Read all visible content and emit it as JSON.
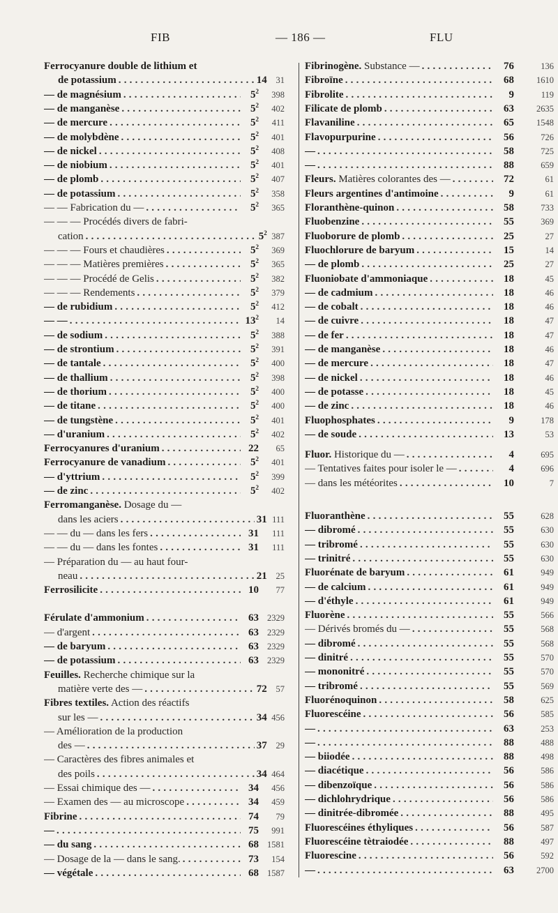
{
  "header": {
    "left": "FIB",
    "center": "— 186 —",
    "right": "FLU"
  },
  "left": {
    "entries": [
      {
        "b": "Ferrocyanure double de lithium et"
      },
      {
        "k": "c",
        "b": "de potassium",
        "v": "14",
        "p": "31"
      },
      {
        "b": "— de magnésium",
        "v": "5",
        "s": "2",
        "p": "398"
      },
      {
        "b": "— de manganèse",
        "v": "5",
        "s": "2",
        "p": "402"
      },
      {
        "b": "— de mercure",
        "v": "5",
        "s": "2",
        "p": "411"
      },
      {
        "b": "— de molybdène",
        "v": "5",
        "s": "2",
        "p": "401"
      },
      {
        "b": "— de nickel",
        "v": "5",
        "s": "2",
        "p": "408"
      },
      {
        "b": "— de niobium",
        "v": "5",
        "s": "2",
        "p": "401"
      },
      {
        "b": "— de plomb",
        "v": "5",
        "s": "2",
        "p": "407"
      },
      {
        "b": "— de potassium",
        "v": "5",
        "s": "2",
        "p": "358"
      },
      {
        "r": "— — Fabrication du —",
        "v": "5",
        "s": "2",
        "p": "365"
      },
      {
        "r": "— — — Procédés divers de fabri-"
      },
      {
        "k": "c",
        "r": "cation",
        "v": "5",
        "s": "2",
        "p": "387"
      },
      {
        "r": "— — — Fours et chaudières",
        "v": "5",
        "s": "2",
        "p": "369"
      },
      {
        "r": "— — — Matières premières",
        "v": "5",
        "s": "2",
        "p": "365"
      },
      {
        "r": "— — — Procédé de Gelis",
        "v": "5",
        "s": "2",
        "p": "382"
      },
      {
        "r": "— — — Rendements",
        "v": "5",
        "s": "2",
        "p": "379"
      },
      {
        "b": "— de rubidium",
        "v": "5",
        "s": "2",
        "p": "412"
      },
      {
        "b": "— —",
        "v": "13",
        "s": "2",
        "p": "14"
      },
      {
        "b": "— de sodium",
        "v": "5",
        "s": "2",
        "p": "388"
      },
      {
        "b": "— de strontium",
        "v": "5",
        "s": "2",
        "p": "391"
      },
      {
        "b": "— de tantale",
        "v": "5",
        "s": "2",
        "p": "400"
      },
      {
        "b": "— de thallium",
        "v": "5",
        "s": "2",
        "p": "398"
      },
      {
        "b": "— de thorium",
        "v": "5",
        "s": "2",
        "p": "400"
      },
      {
        "b": "— de titane",
        "v": "5",
        "s": "2",
        "p": "400"
      },
      {
        "b": "— de tungstène",
        "v": "5",
        "s": "2",
        "p": "401"
      },
      {
        "b": "— d'uranium",
        "v": "5",
        "s": "2",
        "p": "402"
      },
      {
        "b": "Ferrocyanures d'uranium",
        "v": "22",
        "p": "65"
      },
      {
        "b": "Ferrocyanure de vanadium",
        "v": "5",
        "s": "2",
        "p": "401"
      },
      {
        "b": "— d'yttrium",
        "v": "5",
        "s": "2",
        "p": "399"
      },
      {
        "b": "— de zinc",
        "v": "5",
        "s": "2",
        "p": "402"
      },
      {
        "b": "Ferromanganèse.",
        "r": " Dosage du —"
      },
      {
        "k": "c",
        "r": "dans les aciers",
        "v": "31",
        "p": "111"
      },
      {
        "r": "— — du — dans les fers",
        "v": "31",
        "p": "111"
      },
      {
        "r": "— — du — dans les fontes",
        "v": "31",
        "p": "111"
      },
      {
        "r": "— Préparation du — au haut four-"
      },
      {
        "k": "c",
        "r": "neau",
        "v": "21",
        "p": "25"
      },
      {
        "b": "Ferrosilicite",
        "v": "10",
        "p": "77"
      },
      {
        "b": "Férulate d'ammonium",
        "v": "63",
        "p": "2329"
      },
      {
        "r": "— d'argent",
        "v": "63",
        "p": "2329"
      },
      {
        "b": "— de baryum",
        "v": "63",
        "p": "2329"
      },
      {
        "b": "— de potassium",
        "v": "63",
        "p": "2329"
      },
      {
        "b": "Feuilles.",
        "r": " Recherche chimique sur la"
      },
      {
        "k": "c",
        "r": "matière verte des —",
        "v": "72",
        "p": "57"
      },
      {
        "b": "Fibres textiles.",
        "r": " Action des réactifs"
      },
      {
        "k": "c",
        "r": "sur les —",
        "v": "34",
        "p": "456"
      },
      {
        "r": "— Amélioration de la production"
      },
      {
        "k": "c",
        "r": "des —",
        "v": "37",
        "p": "29"
      },
      {
        "r": "— Caractères des fibres animales et"
      },
      {
        "k": "c",
        "r": "des poils",
        "v": "34",
        "p": "464"
      },
      {
        "r": "— Essai chimique des —",
        "v": "34",
        "p": "456"
      },
      {
        "r": "— Examen des — au microscope",
        "v": "34",
        "p": "459"
      },
      {
        "b": "Fibrine",
        "v": "74",
        "p": "79"
      },
      {
        "b": "—",
        "v": "75",
        "p": "991"
      },
      {
        "b": "— du sang",
        "v": "68",
        "p": "1581"
      },
      {
        "r": "— Dosage de la — dans le sang.",
        "v": "73",
        "p": "154"
      },
      {
        "b": "— végétale",
        "v": "68",
        "p": "1587"
      }
    ]
  },
  "right": {
    "entries": [
      {
        "b": "Fibrinogène.",
        "r": " Substance —",
        "v": "76",
        "p": "136"
      },
      {
        "b": "Fibroïne",
        "v": "68",
        "p": "1610"
      },
      {
        "b": "Fibrolite",
        "v": "9",
        "p": "119"
      },
      {
        "b": "Filicate de plomb",
        "v": "63",
        "p": "2635"
      },
      {
        "b": "Flavaniline",
        "v": "65",
        "p": "1548"
      },
      {
        "b": "Flavopurpurine",
        "v": "56",
        "p": "726"
      },
      {
        "b": "—",
        "v": "58",
        "p": "725"
      },
      {
        "b": "—",
        "v": "88",
        "p": "659"
      },
      {
        "b": "Fleurs.",
        "r": " Matières colorantes des —",
        "v": "72",
        "p": "61"
      },
      {
        "b": "Fleurs argentines d'antimoine",
        "v": "9",
        "p": "61"
      },
      {
        "b": "Floranthène-quinon",
        "v": "58",
        "p": "733"
      },
      {
        "b": "Fluobenzine",
        "v": "55",
        "p": "369"
      },
      {
        "b": "Fluoborure de plomb",
        "v": "25",
        "p": "27"
      },
      {
        "b": "Fluochlorure de baryum",
        "v": "15",
        "p": "14"
      },
      {
        "b": "— de plomb",
        "v": "25",
        "p": "27"
      },
      {
        "b": "Fluoniobate d'ammoniaque",
        "v": "18",
        "p": "45"
      },
      {
        "b": "— de cadmium",
        "v": "18",
        "p": "46"
      },
      {
        "b": "— de cobalt",
        "v": "18",
        "p": "46"
      },
      {
        "b": "— de cuivre",
        "v": "18",
        "p": "47"
      },
      {
        "b": "— de fer",
        "v": "18",
        "p": "47"
      },
      {
        "b": "— de manganèse",
        "v": "18",
        "p": "46"
      },
      {
        "b": "— de mercure",
        "v": "18",
        "p": "47"
      },
      {
        "b": "— de nickel",
        "v": "18",
        "p": "46"
      },
      {
        "b": "— de potasse",
        "v": "18",
        "p": "45"
      },
      {
        "b": "— de zinc",
        "v": "18",
        "p": "46"
      },
      {
        "b": "Fluophosphates",
        "v": "9",
        "p": "178"
      },
      {
        "b": "— de soude",
        "v": "13",
        "p": "53"
      },
      {
        "b": "Fluor.",
        "r": " Historique du —",
        "v": "4",
        "p": "695"
      },
      {
        "r": "— Tentatives faites pour isoler le —",
        "v": "4",
        "p": "696"
      },
      {
        "r": "— dans les météorites",
        "v": "10",
        "p": "7"
      },
      {
        "b": "Fluoranthène",
        "v": "55",
        "p": "628"
      },
      {
        "b": "— dibromé",
        "v": "55",
        "p": "630"
      },
      {
        "b": "— tribromé",
        "v": "55",
        "p": "630"
      },
      {
        "b": "— trinitré",
        "v": "55",
        "p": "630"
      },
      {
        "b": "Fluorénate de baryum",
        "v": "61",
        "p": "949"
      },
      {
        "b": "— de calcium",
        "v": "61",
        "p": "949"
      },
      {
        "b": "— d'éthyle",
        "v": "61",
        "p": "949"
      },
      {
        "b": "Fluorène",
        "v": "55",
        "p": "566"
      },
      {
        "r": "— Dérivés bromés du —",
        "v": "55",
        "p": "568"
      },
      {
        "b": "— dibromé",
        "v": "55",
        "p": "568"
      },
      {
        "b": "— dinitré",
        "v": "55",
        "p": "570"
      },
      {
        "b": "— mononitré",
        "v": "55",
        "p": "570"
      },
      {
        "b": "— tribromé",
        "v": "55",
        "p": "569"
      },
      {
        "b": "Fluorénoquinon",
        "v": "58",
        "p": "625"
      },
      {
        "b": "Fluorescéine",
        "v": "56",
        "p": "585"
      },
      {
        "b": "—",
        "v": "63",
        "p": "253"
      },
      {
        "b": "—",
        "v": "88",
        "p": "488"
      },
      {
        "b": "— biiodée",
        "v": "88",
        "p": "498"
      },
      {
        "b": "— diacétique",
        "v": "56",
        "p": "586"
      },
      {
        "b": "— dibenzoïque",
        "v": "56",
        "p": "586"
      },
      {
        "b": "— dichlohrydrique",
        "v": "56",
        "p": "586"
      },
      {
        "b": "— dinitrée-dibromée",
        "v": "88",
        "p": "495"
      },
      {
        "b": "Fluorescéines éthyliques",
        "v": "56",
        "p": "587"
      },
      {
        "b": "Fluorescéine tètraiodée",
        "v": "88",
        "p": "497"
      },
      {
        "b": "Fluorescine",
        "v": "56",
        "p": "592"
      },
      {
        "b": "—",
        "v": "63",
        "p": "2700"
      }
    ]
  }
}
